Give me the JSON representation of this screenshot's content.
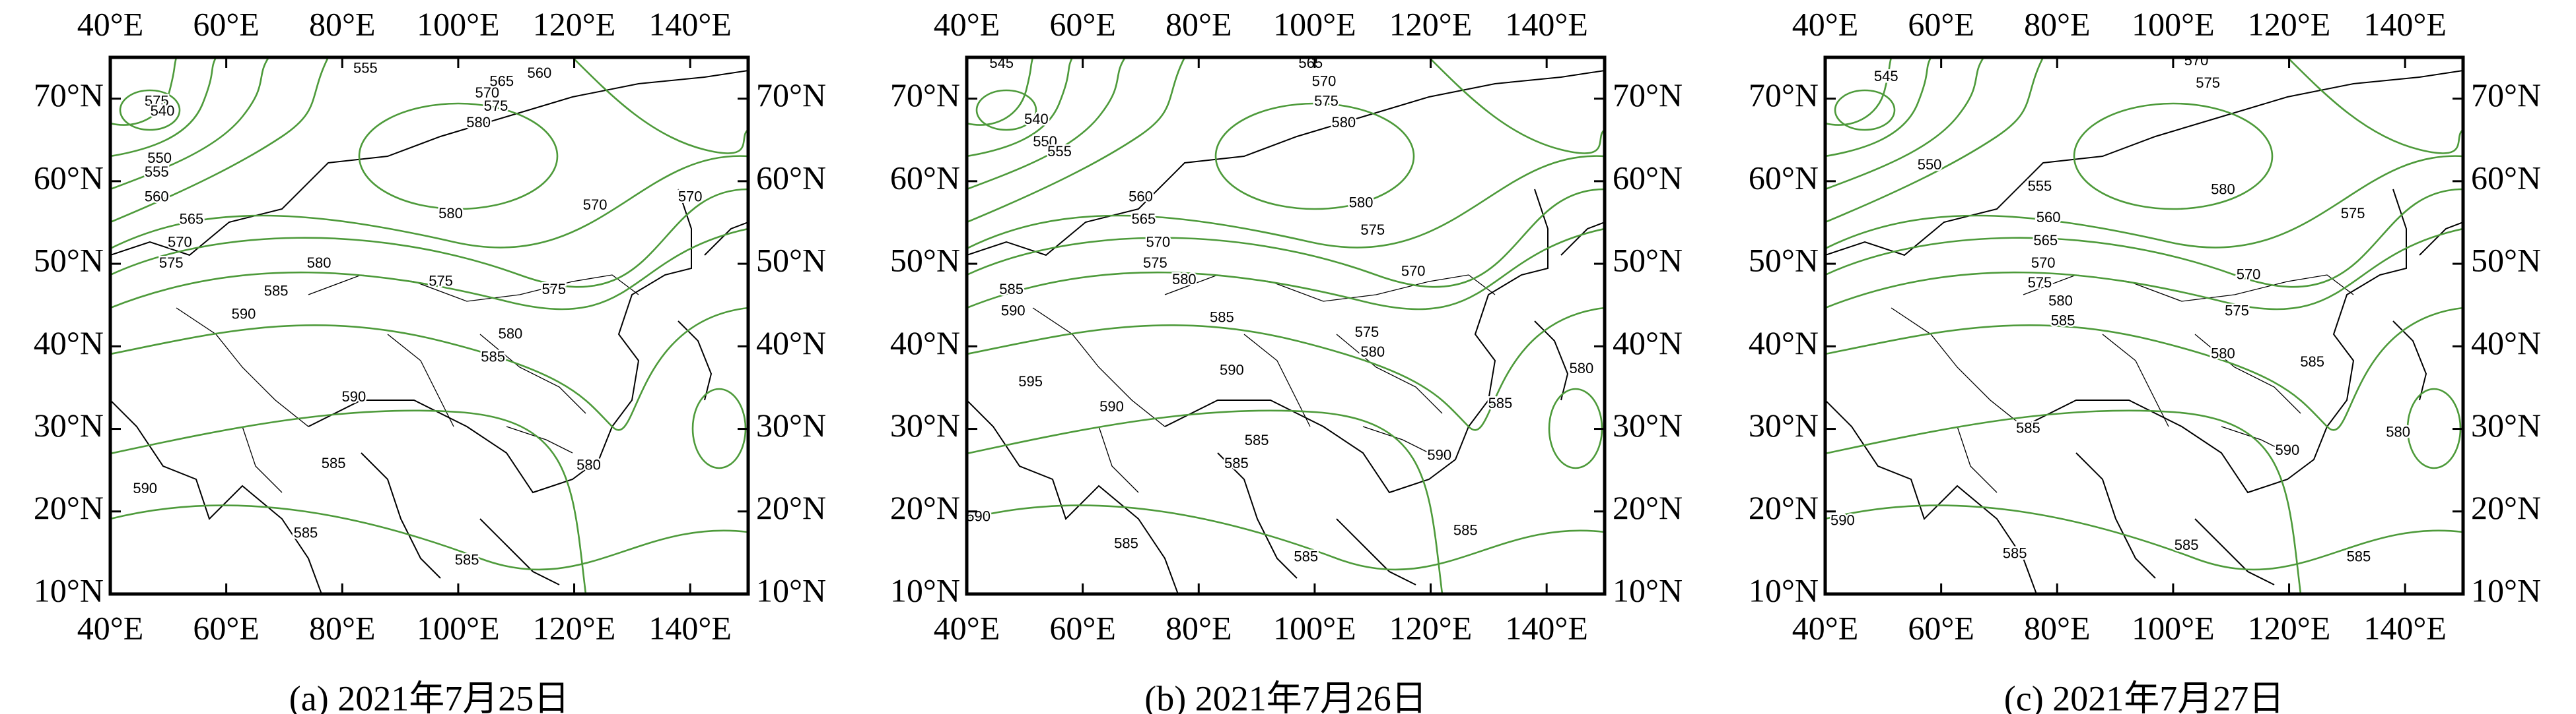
{
  "map": {
    "xlim": [
      40,
      150
    ],
    "ylim": [
      10,
      75
    ],
    "xticks": [
      {
        "value": 40,
        "label": "40°E"
      },
      {
        "value": 60,
        "label": "60°E"
      },
      {
        "value": 80,
        "label": "80°E"
      },
      {
        "value": 100,
        "label": "100°E"
      },
      {
        "value": 120,
        "label": "120°E"
      },
      {
        "value": 140,
        "label": "140°E"
      }
    ],
    "yticks": [
      {
        "value": 10,
        "label": "10°N"
      },
      {
        "value": 20,
        "label": "20°N"
      },
      {
        "value": 30,
        "label": "30°N"
      },
      {
        "value": 40,
        "label": "40°N"
      },
      {
        "value": 50,
        "label": "50°N"
      },
      {
        "value": 60,
        "label": "60°N"
      },
      {
        "value": 70,
        "label": "70°N"
      }
    ]
  },
  "panels": [
    {
      "caption": "(a) 2021年7月25日",
      "contour_labels": [
        {
          "value": 555,
          "lon": 84,
          "lat": 73.6
        },
        {
          "value": 560,
          "lon": 114,
          "lat": 73
        },
        {
          "value": 565,
          "lon": 107.5,
          "lat": 72
        },
        {
          "value": 570,
          "lon": 105,
          "lat": 70.6
        },
        {
          "value": 575,
          "lon": 106.5,
          "lat": 69
        },
        {
          "value": 580,
          "lon": 103.5,
          "lat": 67
        },
        {
          "value": 575,
          "lon": 48,
          "lat": 69.6
        },
        {
          "value": 540,
          "lon": 49,
          "lat": 68.4
        },
        {
          "value": 550,
          "lon": 48.5,
          "lat": 62.7
        },
        {
          "value": 555,
          "lon": 48,
          "lat": 61
        },
        {
          "value": 560,
          "lon": 48,
          "lat": 58
        },
        {
          "value": 565,
          "lon": 54,
          "lat": 55.3
        },
        {
          "value": 570,
          "lon": 52,
          "lat": 52.5
        },
        {
          "value": 575,
          "lon": 50.5,
          "lat": 50
        },
        {
          "value": 580,
          "lon": 98.7,
          "lat": 56
        },
        {
          "value": 570,
          "lon": 123.6,
          "lat": 57
        },
        {
          "value": 570,
          "lon": 140,
          "lat": 58
        },
        {
          "value": 580,
          "lon": 76,
          "lat": 50
        },
        {
          "value": 575,
          "lon": 97,
          "lat": 47.8
        },
        {
          "value": 575,
          "lon": 116.5,
          "lat": 46.8
        },
        {
          "value": 585,
          "lon": 68.6,
          "lat": 46.6
        },
        {
          "value": 590,
          "lon": 63,
          "lat": 43.8
        },
        {
          "value": 580,
          "lon": 109,
          "lat": 41.4
        },
        {
          "value": 585,
          "lon": 106,
          "lat": 38.6
        },
        {
          "value": 590,
          "lon": 82,
          "lat": 33.8
        },
        {
          "value": 585,
          "lon": 78.5,
          "lat": 25.7
        },
        {
          "value": 580,
          "lon": 122.5,
          "lat": 25.5
        },
        {
          "value": 590,
          "lon": 46,
          "lat": 22.7
        },
        {
          "value": 585,
          "lon": 73.7,
          "lat": 17.3
        },
        {
          "value": 585,
          "lon": 101.5,
          "lat": 14
        }
      ]
    },
    {
      "caption": "(b) 2021年7月26日",
      "contour_labels": [
        {
          "value": 545,
          "lon": 46,
          "lat": 74.2
        },
        {
          "value": 540,
          "lon": 52,
          "lat": 67.4
        },
        {
          "value": 550,
          "lon": 53.5,
          "lat": 64.7
        },
        {
          "value": 555,
          "lon": 56,
          "lat": 63.5
        },
        {
          "value": 565,
          "lon": 99.3,
          "lat": 74.2
        },
        {
          "value": 570,
          "lon": 101.6,
          "lat": 72
        },
        {
          "value": 575,
          "lon": 102,
          "lat": 69.6
        },
        {
          "value": 580,
          "lon": 105,
          "lat": 67
        },
        {
          "value": 560,
          "lon": 70,
          "lat": 58
        },
        {
          "value": 565,
          "lon": 70.5,
          "lat": 55.3
        },
        {
          "value": 570,
          "lon": 73,
          "lat": 52.5
        },
        {
          "value": 575,
          "lon": 72.5,
          "lat": 50
        },
        {
          "value": 580,
          "lon": 108,
          "lat": 57.3
        },
        {
          "value": 575,
          "lon": 110,
          "lat": 54
        },
        {
          "value": 580,
          "lon": 77.5,
          "lat": 48
        },
        {
          "value": 570,
          "lon": 117,
          "lat": 49
        },
        {
          "value": 585,
          "lon": 47.7,
          "lat": 46.8
        },
        {
          "value": 590,
          "lon": 48,
          "lat": 44.2
        },
        {
          "value": 585,
          "lon": 84,
          "lat": 43.4
        },
        {
          "value": 575,
          "lon": 109,
          "lat": 41.6
        },
        {
          "value": 580,
          "lon": 110,
          "lat": 39.2
        },
        {
          "value": 595,
          "lon": 51,
          "lat": 35.6
        },
        {
          "value": 590,
          "lon": 65,
          "lat": 32.6
        },
        {
          "value": 590,
          "lon": 85.7,
          "lat": 37
        },
        {
          "value": 585,
          "lon": 90,
          "lat": 28.5
        },
        {
          "value": 585,
          "lon": 86.5,
          "lat": 25.7
        },
        {
          "value": 580,
          "lon": 146,
          "lat": 37.2
        },
        {
          "value": 585,
          "lon": 132,
          "lat": 33
        },
        {
          "value": 590,
          "lon": 121.5,
          "lat": 26.7
        },
        {
          "value": 590,
          "lon": 42,
          "lat": 19.3
        },
        {
          "value": 585,
          "lon": 67.5,
          "lat": 16
        },
        {
          "value": 585,
          "lon": 98.5,
          "lat": 14.4
        },
        {
          "value": 585,
          "lon": 126,
          "lat": 17.6
        }
      ]
    },
    {
      "caption": "(c) 2021年7月27日",
      "contour_labels": [
        {
          "value": 545,
          "lon": 50.5,
          "lat": 72.6
        },
        {
          "value": 570,
          "lon": 104,
          "lat": 74.5
        },
        {
          "value": 575,
          "lon": 106,
          "lat": 71.8
        },
        {
          "value": 550,
          "lon": 58,
          "lat": 61.9
        },
        {
          "value": 555,
          "lon": 77,
          "lat": 59.3
        },
        {
          "value": 580,
          "lon": 108.6,
          "lat": 58.9
        },
        {
          "value": 560,
          "lon": 78.5,
          "lat": 55.5
        },
        {
          "value": 565,
          "lon": 78,
          "lat": 52.7
        },
        {
          "value": 570,
          "lon": 77.6,
          "lat": 50
        },
        {
          "value": 575,
          "lon": 77,
          "lat": 47.6
        },
        {
          "value": 575,
          "lon": 131,
          "lat": 56
        },
        {
          "value": 580,
          "lon": 80.6,
          "lat": 45.4
        },
        {
          "value": 585,
          "lon": 81,
          "lat": 43
        },
        {
          "value": 570,
          "lon": 113,
          "lat": 48.6
        },
        {
          "value": 575,
          "lon": 111,
          "lat": 44.2
        },
        {
          "value": 580,
          "lon": 108.6,
          "lat": 39
        },
        {
          "value": 585,
          "lon": 124,
          "lat": 38
        },
        {
          "value": 580,
          "lon": 138.8,
          "lat": 29.5
        },
        {
          "value": 585,
          "lon": 75,
          "lat": 30
        },
        {
          "value": 590,
          "lon": 119.7,
          "lat": 27.3
        },
        {
          "value": 590,
          "lon": 43,
          "lat": 18.8
        },
        {
          "value": 585,
          "lon": 102.3,
          "lat": 15.8
        },
        {
          "value": 585,
          "lon": 72.7,
          "lat": 14.8
        },
        {
          "value": 585,
          "lon": 132,
          "lat": 14.4
        }
      ]
    }
  ]
}
